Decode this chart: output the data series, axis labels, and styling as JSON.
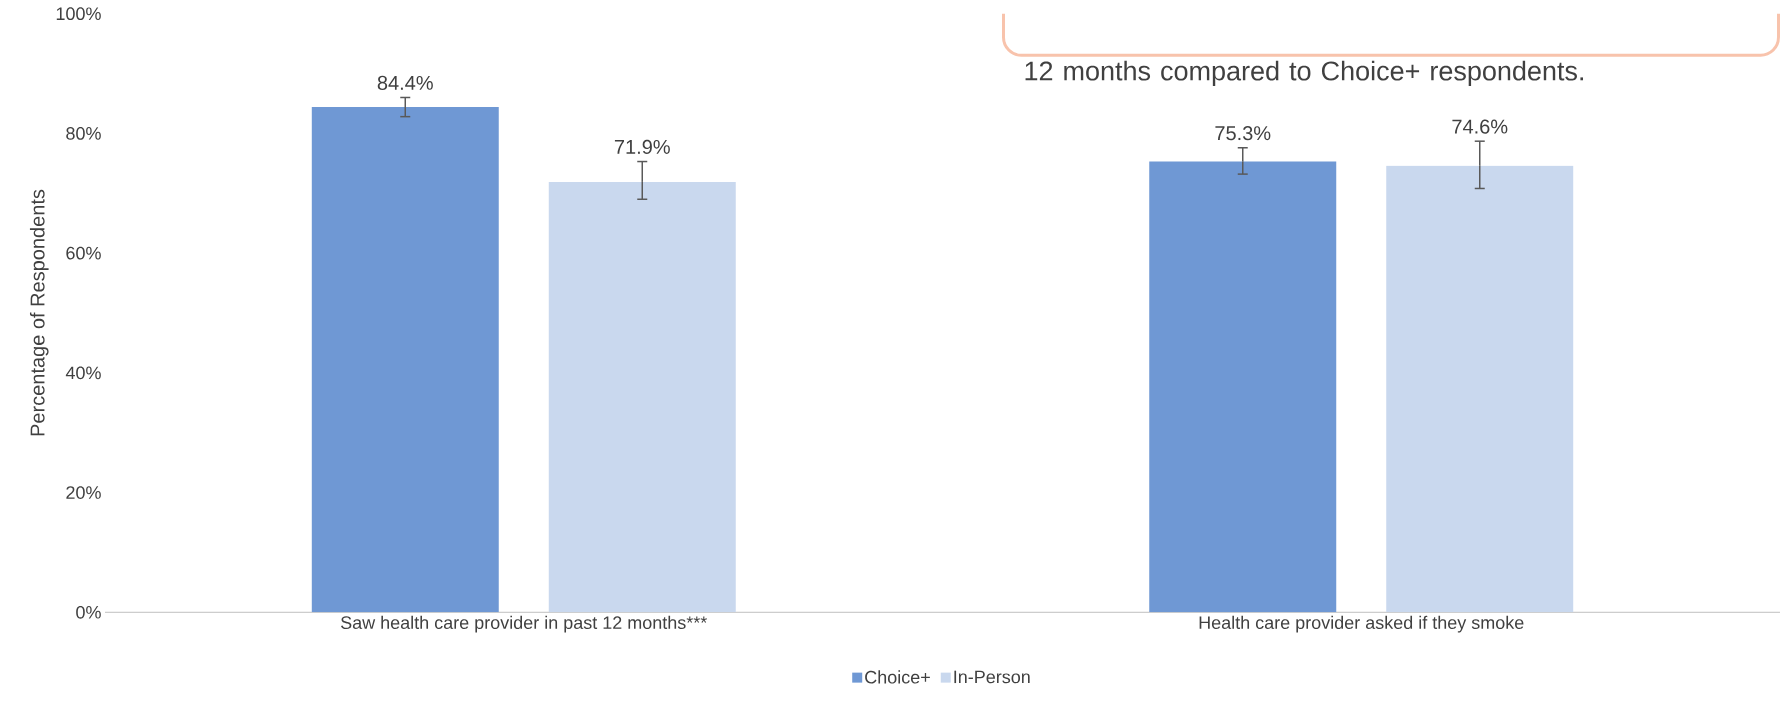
{
  "chart_data": {
    "type": "bar",
    "ylabel": "Percentage of Respondents",
    "categories": [
      "Saw health care provider in past 12 months***",
      "Health care provider asked if they smoke"
    ],
    "series": [
      {
        "name": "Choice+",
        "color": "#6f98d4",
        "values": [
          84.4,
          75.3
        ],
        "errors": [
          [
            82.8,
            86.0
          ],
          [
            73.2,
            77.6
          ]
        ],
        "value_labels": [
          "84.4%",
          "75.3%"
        ]
      },
      {
        "name": "In-Person",
        "color": "#c9d8ee",
        "values": [
          71.9,
          74.6
        ],
        "errors": [
          [
            69.0,
            75.3
          ],
          [
            70.8,
            78.7
          ]
        ],
        "value_labels": [
          "71.9%",
          "74.6%"
        ]
      }
    ],
    "ylim": [
      0,
      100
    ],
    "yticks": [
      {
        "value": 0,
        "label": "0%"
      },
      {
        "value": 20,
        "label": "20%"
      },
      {
        "value": 40,
        "label": "40%"
      },
      {
        "value": 60,
        "label": "60%"
      },
      {
        "value": 80,
        "label": "80%"
      },
      {
        "value": 100,
        "label": "100%"
      }
    ],
    "legend": "bottom",
    "grid": false,
    "annotations": [
      "12 months compared to Choice+ respondents."
    ]
  }
}
